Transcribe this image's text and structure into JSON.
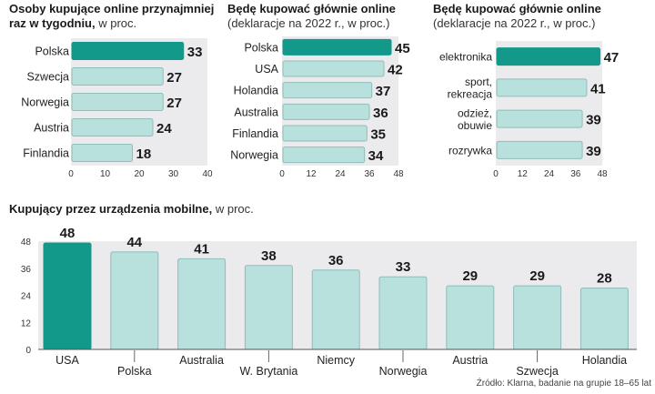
{
  "colors": {
    "highlight": "#12998a",
    "bar": "#b8e0dc",
    "bar_edge": "#8fbdb8",
    "panel_bg": "#ebebee",
    "axis": "#555555"
  },
  "source": "Źródło: Klarna, badanie na grupie 18–65 lat",
  "chart_data": [
    {
      "type": "bar",
      "orientation": "horizontal",
      "title": "Osoby kupujące online przynajmniej",
      "title_line2": "raz w tygodniu,",
      "subtitle": "w proc.",
      "categories": [
        "Polska",
        "Szwecja",
        "Norwegia",
        "Austria",
        "Finlandia"
      ],
      "values": [
        33,
        27,
        27,
        24,
        18
      ],
      "highlight": "Polska",
      "xlim": [
        0,
        40
      ],
      "ticks": [
        "0",
        "10",
        "20",
        "30",
        "40"
      ]
    },
    {
      "type": "bar",
      "orientation": "horizontal",
      "title": "Będę kupować głównie online",
      "subtitle": "(deklaracje na 2022 r., w proc.)",
      "categories": [
        "Polska",
        "USA",
        "Holandia",
        "Australia",
        "Finlandia",
        "Norwegia"
      ],
      "values": [
        45,
        42,
        37,
        36,
        35,
        34
      ],
      "highlight": "Polska",
      "xlim": [
        0,
        48
      ],
      "ticks": [
        "0",
        "12",
        "24",
        "36",
        "48"
      ]
    },
    {
      "type": "bar",
      "orientation": "horizontal",
      "title": "Będę kupować głównie online",
      "subtitle": "(deklaracje na 2022 r., w proc.)",
      "categories": [
        "elektronika",
        "sport,\nrekreacja",
        "odzież,\nobuwie",
        "rozrywka"
      ],
      "values": [
        47,
        41,
        39,
        39
      ],
      "highlight": "elektronika",
      "xlim": [
        0,
        48
      ],
      "ticks": [
        "0",
        "12",
        "24",
        "36",
        "48"
      ]
    },
    {
      "type": "bar",
      "orientation": "vertical",
      "title": "Kupujący przez urządzenia mobilne,",
      "subtitle": "w proc.",
      "categories": [
        "USA",
        "Polska",
        "Australia",
        "W. Brytania",
        "Niemcy",
        "Norwegia",
        "Austria",
        "Szwecja",
        "Holandia"
      ],
      "values": [
        48,
        44,
        41,
        38,
        36,
        33,
        29,
        29,
        28
      ],
      "highlight": "USA",
      "ylim": [
        0,
        48
      ],
      "ticks": [
        "0",
        "12",
        "24",
        "36",
        "48"
      ]
    }
  ]
}
